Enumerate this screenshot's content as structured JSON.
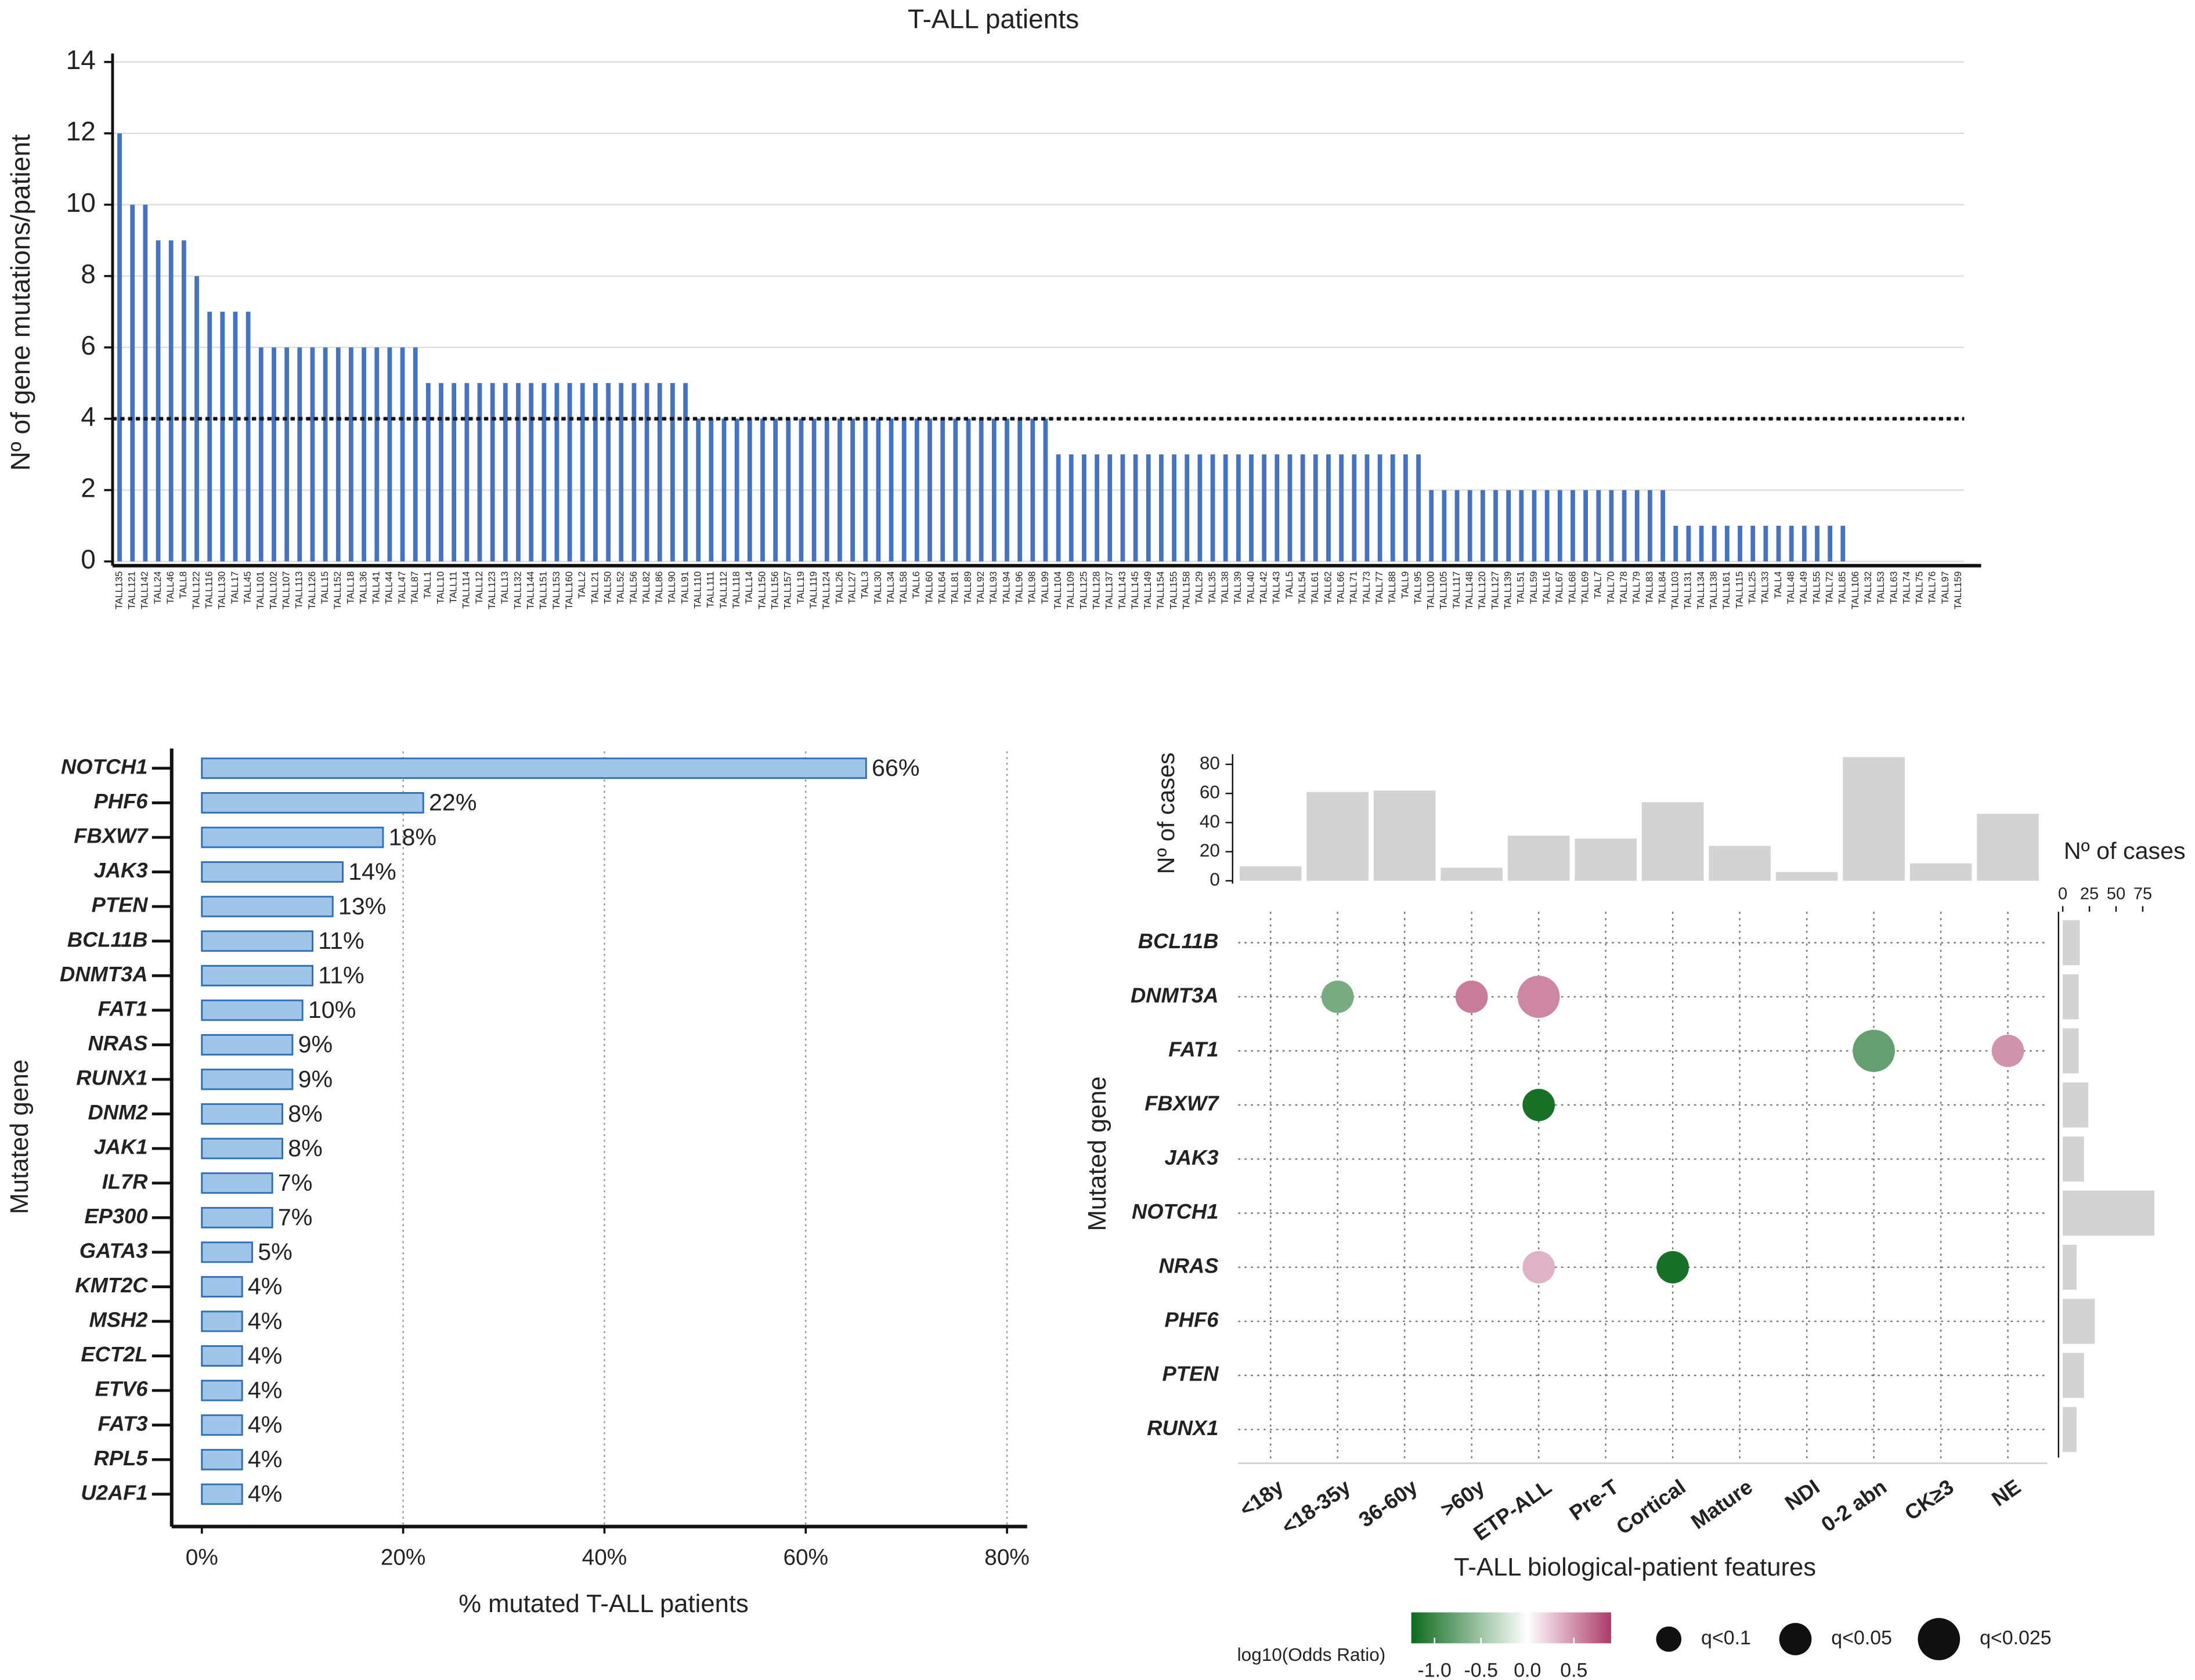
{
  "chart_data": [
    {
      "type": "bar",
      "title": "T-ALL patients",
      "y_label": "Nº of gene mutations/patient",
      "categories": [
        "TALL135",
        "TALL121",
        "TALL142",
        "TALL24",
        "TALL46",
        "TALL8",
        "TALL122",
        "TALL116",
        "TALL130",
        "TALL17",
        "TALL45",
        "TALL101",
        "TALL102",
        "TALL107",
        "TALL113",
        "TALL126",
        "TALL15",
        "TALL152",
        "TALL18",
        "TALL36",
        "TALL41",
        "TALL44",
        "TALL47",
        "TALL87",
        "TALL1",
        "TALL10",
        "TALL11",
        "TALL114",
        "TALL12",
        "TALL123",
        "TALL13",
        "TALL132",
        "TALL144",
        "TALL151",
        "TALL153",
        "TALL160",
        "TALL2",
        "TALL21",
        "TALL50",
        "TALL52",
        "TALL56",
        "TALL82",
        "TALL86",
        "TALL90",
        "TALL91",
        "TALL110",
        "TALL111",
        "TALL112",
        "TALL118",
        "TALL14",
        "TALL150",
        "TALL156",
        "TALL157",
        "TALL19",
        "TALL119",
        "TALL124",
        "TALL26",
        "TALL27",
        "TALL3",
        "TALL30",
        "TALL34",
        "TALL58",
        "TALL6",
        "TALL60",
        "TALL64",
        "TALL81",
        "TALL89",
        "TALL92",
        "TALL93",
        "TALL94",
        "TALL96",
        "TALL98",
        "TALL99",
        "TALL104",
        "TALL109",
        "TALL125",
        "TALL128",
        "TALL137",
        "TALL143",
        "TALL145",
        "TALL149",
        "TALL154",
        "TALL155",
        "TALL158",
        "TALL29",
        "TALL35",
        "TALL38",
        "TALL39",
        "TALL40",
        "TALL42",
        "TALL43",
        "TALL5",
        "TALL54",
        "TALL61",
        "TALL62",
        "TALL66",
        "TALL71",
        "TALL73",
        "TALL77",
        "TALL88",
        "TALL9",
        "TALL95",
        "TALL100",
        "TALL105",
        "TALL117",
        "TALL148",
        "TALL120",
        "TALL127",
        "TALL139",
        "TALL51",
        "TALL59",
        "TALL16",
        "TALL67",
        "TALL68",
        "TALL69",
        "TALL7",
        "TALL70",
        "TALL78",
        "TALL79",
        "TALL83",
        "TALL84",
        "TALL103",
        "TALL131",
        "TALL134",
        "TALL138",
        "TALL161",
        "TALL115",
        "TALL25",
        "TALL33",
        "TALL4",
        "TALL48",
        "TALL49",
        "TALL55",
        "TALL72",
        "TALL85",
        "TALL106",
        "TALL32",
        "TALL53",
        "TALL63",
        "TALL74",
        "TALL75",
        "TALL76",
        "TALL97",
        "TALL159"
      ],
      "values": [
        12,
        10,
        10,
        9,
        9,
        9,
        8,
        7,
        7,
        7,
        7,
        6,
        6,
        6,
        6,
        6,
        6,
        6,
        6,
        6,
        6,
        6,
        6,
        6,
        5,
        5,
        5,
        5,
        5,
        5,
        5,
        5,
        5,
        5,
        5,
        5,
        5,
        5,
        5,
        5,
        5,
        5,
        5,
        5,
        5,
        4,
        4,
        4,
        4,
        4,
        4,
        4,
        4,
        4,
        4,
        4,
        4,
        4,
        4,
        4,
        4,
        4,
        4,
        4,
        4,
        4,
        4,
        4,
        4,
        4,
        4,
        4,
        4,
        3,
        3,
        3,
        3,
        3,
        3,
        3,
        3,
        3,
        3,
        3,
        3,
        3,
        3,
        3,
        3,
        3,
        3,
        3,
        3,
        3,
        3,
        3,
        3,
        3,
        3,
        3,
        3,
        3,
        2,
        2,
        2,
        2,
        2,
        2,
        2,
        2,
        2,
        2,
        2,
        2,
        2,
        2,
        2,
        2,
        2,
        2,
        2,
        1,
        1,
        1,
        1,
        1,
        1,
        1,
        1,
        1,
        1,
        1,
        1,
        1,
        1,
        0,
        0,
        0,
        0,
        0,
        0,
        0,
        0,
        0
      ],
      "color": "#4472c4",
      "ylim": [
        0,
        14
      ],
      "yticks": [
        0,
        2,
        4,
        6,
        8,
        10,
        12,
        14
      ],
      "grid": true,
      "threshold": 4
    },
    {
      "type": "hbar",
      "y_label": "Mutated gene",
      "x_label": "% mutated T-ALL patients",
      "categories": [
        "NOTCH1",
        "PHF6",
        "FBXW7",
        "JAK3",
        "PTEN",
        "BCL11B",
        "DNMT3A",
        "FAT1",
        "NRAS",
        "RUNX1",
        "DNM2",
        "JAK1",
        "IL7R",
        "EP300",
        "GATA3",
        "KMT2C",
        "MSH2",
        "ECT2L",
        "ETV6",
        "FAT3",
        "RPL5",
        "U2AF1"
      ],
      "values": [
        66,
        22,
        18,
        14,
        13,
        11,
        11,
        10,
        9,
        9,
        8,
        8,
        7,
        7,
        5,
        4,
        4,
        4,
        4,
        4,
        4,
        4
      ],
      "value_labels": [
        "66%",
        "22%",
        "18%",
        "14%",
        "13%",
        "11%",
        "11%",
        "10%",
        "9%",
        "9%",
        "8%",
        "8%",
        "7%",
        "7%",
        "5%",
        "4%",
        "4%",
        "4%",
        "4%",
        "4%",
        "4%",
        "4%"
      ],
      "color": "#9fc5ea",
      "edge_color": "#2f6fb3",
      "xlim": [
        -3,
        82
      ],
      "xticks": [
        {
          "value": 0,
          "label": "0%"
        },
        {
          "value": 20,
          "label": "20%"
        },
        {
          "value": 40,
          "label": "40%"
        },
        {
          "value": 60,
          "label": "60%"
        },
        {
          "value": 80,
          "label": "80%"
        }
      ],
      "grid": true
    },
    {
      "type": "bubble",
      "x_label": "T-ALL biological-patient features",
      "y_label": "Mutated gene",
      "categories": [
        "<18y",
        "<18-35y",
        "36-60y",
        ">60y",
        "ETP-ALL",
        "Pre-T",
        "Cortical",
        "Mature",
        "NDI",
        "0-2 abn",
        "CK≥3",
        "NE"
      ],
      "genes": [
        "BCL11B",
        "DNMT3A",
        "FAT1",
        "FBXW7",
        "JAK3",
        "NOTCH1",
        "NRAS",
        "PHF6",
        "PTEN",
        "RUNX1"
      ],
      "points": [
        {
          "feature": "<18-35y",
          "gene": "DNMT3A",
          "value": -0.7,
          "q": 0.05
        },
        {
          "feature": ">60y",
          "gene": "DNMT3A",
          "value": 0.6,
          "q": 0.05
        },
        {
          "feature": "ETP-ALL",
          "gene": "DNMT3A",
          "value": 0.55,
          "q": 0.025
        },
        {
          "feature": "0-2 abn",
          "gene": "FAT1",
          "value": -0.8,
          "q": 0.025
        },
        {
          "feature": "NE",
          "gene": "FAT1",
          "value": 0.5,
          "q": 0.05
        },
        {
          "feature": "ETP-ALL",
          "gene": "FBXW7",
          "value": -1.2,
          "q": 0.05
        },
        {
          "feature": "ETP-ALL",
          "gene": "NRAS",
          "value": 0.35,
          "q": 0.05
        },
        {
          "feature": "Cortical",
          "gene": "NRAS",
          "value": -1.2,
          "q": 0.05
        }
      ],
      "color_label": "log10(Odds Ratio)",
      "colormap": [
        "#0d6b1e",
        "#ffffff",
        "#ad3b67"
      ],
      "colorlim": [
        -1.25,
        0.9
      ],
      "colorticks": [
        {
          "value": -1,
          "label": "-1.0"
        },
        -0.5,
        {
          "value": 0,
          "label": "0.0"
        },
        0.5
      ],
      "size_legend": [
        {
          "value": 0.1,
          "label": "q<0.1"
        },
        {
          "value": 0.05,
          "label": "q<0.05"
        },
        {
          "value": 0.025,
          "label": "q<0.025"
        }
      ],
      "top_bars": {
        "y_label": "Nº of cases",
        "values": [
          10,
          61,
          62,
          9,
          31,
          29,
          54,
          24,
          6,
          85,
          12,
          46
        ],
        "ylim": [
          0,
          86
        ],
        "yticks": [
          0,
          20,
          40,
          60,
          80
        ],
        "color": "#d3d3d3"
      },
      "right_bars": {
        "x_label": "Nº of cases",
        "values": [
          16,
          15,
          15,
          24,
          20,
          86,
          13,
          30,
          20,
          13
        ],
        "xlim": [
          0,
          95
        ],
        "xticks": [
          0,
          25,
          50,
          75
        ],
        "color": "#d3d3d3"
      },
      "grid": true
    }
  ]
}
